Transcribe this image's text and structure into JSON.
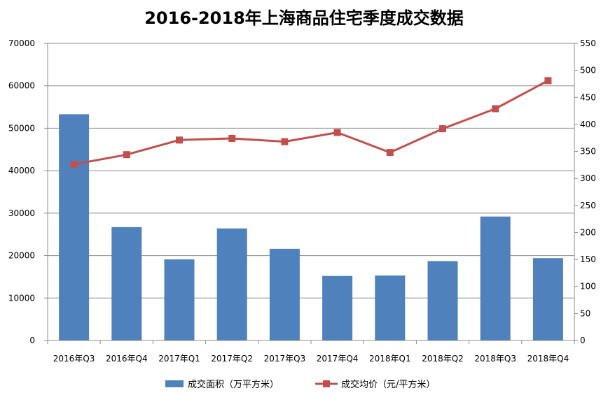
{
  "chart_data": {
    "type": "bar+line",
    "title": "2016-2018年上海商品住宅季度成交数据",
    "categories": [
      "2016年Q3",
      "2016年Q4",
      "2017年Q1",
      "2017年Q2",
      "2017年Q3",
      "2017年Q4",
      "2018年Q1",
      "2018年Q2",
      "2018年Q3",
      "2018年Q4"
    ],
    "series": [
      {
        "name": "成交面积（万平方米）",
        "type": "bar",
        "axis": "left",
        "color": "#4f81bd",
        "values": [
          53300,
          26700,
          19100,
          26400,
          21600,
          15200,
          15300,
          18700,
          29200,
          19400
        ]
      },
      {
        "name": "成交均价（元/平方米）",
        "type": "line",
        "axis": "right",
        "color": "#c0504d",
        "values": [
          326,
          344,
          371,
          374,
          368,
          385,
          348,
          392,
          429,
          481
        ]
      }
    ],
    "y_left": {
      "min": 0,
      "max": 70000,
      "step": 10000
    },
    "y_right": {
      "min": 0,
      "max": 550,
      "step": 50
    },
    "grid": true,
    "legend_position": "bottom"
  }
}
